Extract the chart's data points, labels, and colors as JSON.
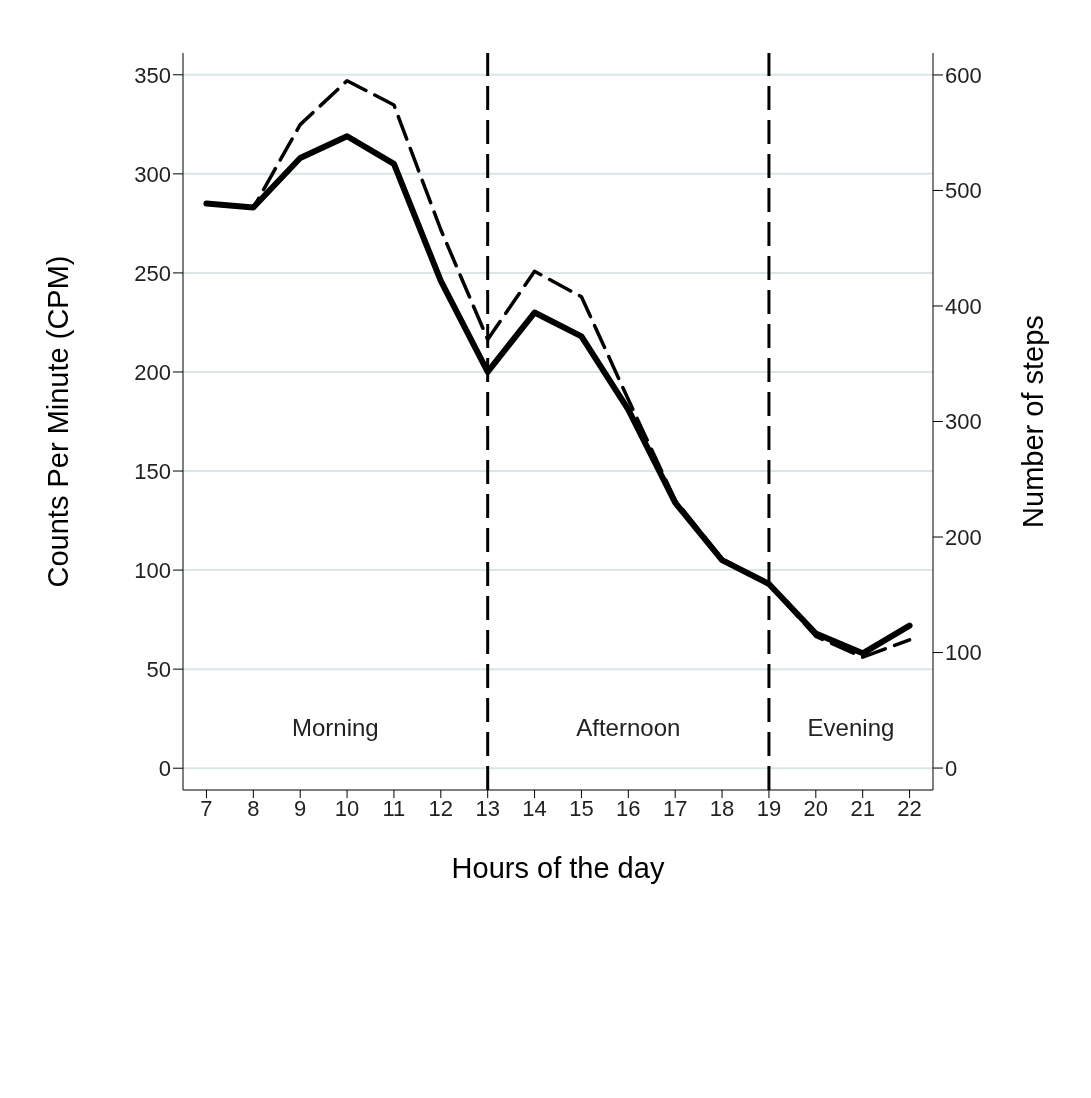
{
  "chart_data": {
    "type": "line",
    "xlabel": "Hours of the day",
    "ylabel": "Counts Per Minute (CPM)",
    "y2label": "Number of steps",
    "x": [
      7,
      8,
      9,
      10,
      11,
      12,
      13,
      14,
      15,
      16,
      17,
      18,
      19,
      20,
      21,
      22
    ],
    "series": [
      {
        "color": "#000000",
        "line_style": "solid",
        "values": [
          285,
          283,
          308,
          319,
          305,
          246,
          200,
          230,
          218,
          181,
          134,
          105,
          93,
          68,
          58,
          72
        ]
      },
      {
        "color": "#000000",
        "line_style": "dashed",
        "axis": "y2",
        "values": [
          489,
          485,
          557,
          595,
          574,
          466,
          371,
          430,
          408,
          319,
          232,
          181,
          159,
          114,
          96,
          111
        ]
      }
    ],
    "xlim": [
      6.5,
      22.5
    ],
    "xticks": [
      7,
      8,
      9,
      10,
      11,
      12,
      13,
      14,
      15,
      16,
      17,
      18,
      19,
      20,
      21,
      22
    ],
    "ylim": [
      -11,
      361
    ],
    "yticks": [
      0,
      50,
      100,
      150,
      200,
      250,
      300,
      350
    ],
    "y2lim": [
      -19,
      619
    ],
    "y2ticks": [
      0,
      100,
      200,
      300,
      400,
      500,
      600
    ],
    "grid": "y",
    "legend": false,
    "marker": "none",
    "ref_lines": [
      {
        "axis": "x",
        "value": 13,
        "color": "#000000",
        "line_style": "dashed"
      },
      {
        "axis": "x",
        "value": 19,
        "color": "#000000",
        "line_style": "dashed"
      }
    ],
    "annotations": [
      "Morning",
      "Afternoon",
      "Evening"
    ]
  }
}
